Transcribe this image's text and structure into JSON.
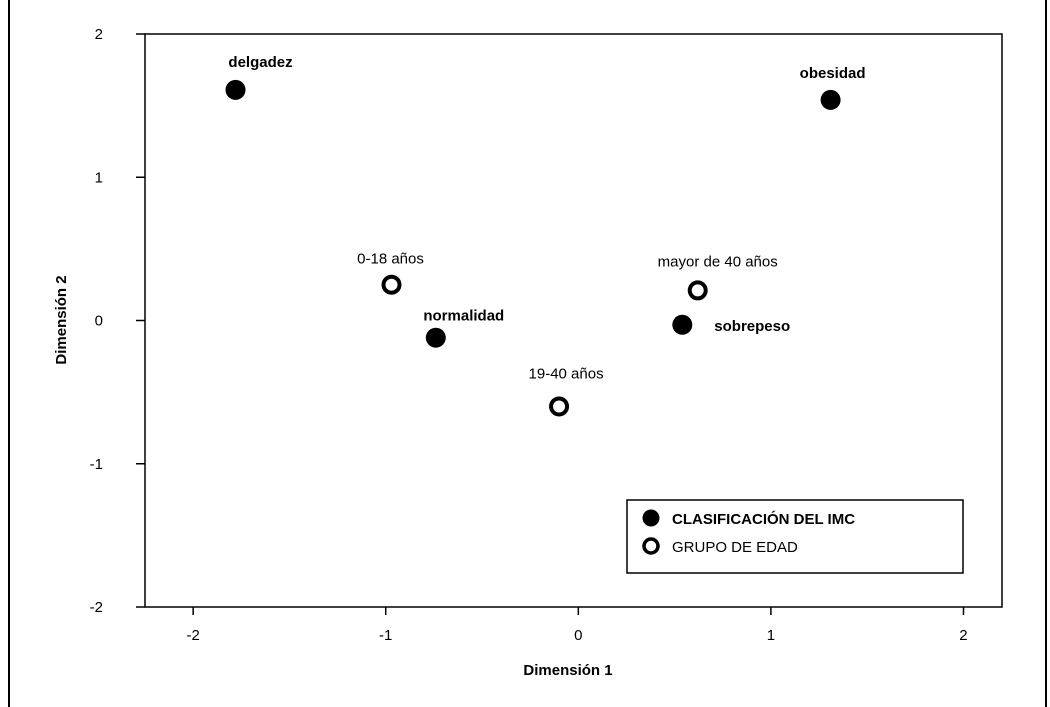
{
  "chart_data": {
    "type": "scatter",
    "title": "",
    "xlabel": "Dimensión 1",
    "ylabel": "Dimensión 2",
    "xlim": [
      -2.25,
      2.2
    ],
    "ylim": [
      -2,
      2
    ],
    "xticks": [
      -2,
      -1,
      0,
      1,
      2
    ],
    "yticks": [
      -2,
      -1,
      0,
      1,
      2
    ],
    "xtick_labels": [
      "-2",
      "-1",
      "0",
      "1",
      "2"
    ],
    "ytick_labels": [
      "-2",
      "-1",
      "0",
      "1",
      "2"
    ],
    "grid": false,
    "legend_position": "bottom-right",
    "series": [
      {
        "name": "CLASIFICACIÓN DEL IMC",
        "marker": "filled-circle",
        "color": "#000000",
        "points": [
          {
            "label": "delgadez",
            "x": -1.78,
            "y": 1.61
          },
          {
            "label": "normalidad",
            "x": -0.74,
            "y": -0.12
          },
          {
            "label": "sobrepeso",
            "x": 0.54,
            "y": -0.03
          },
          {
            "label": "obesidad",
            "x": 1.31,
            "y": 1.54
          }
        ]
      },
      {
        "name": "GRUPO DE EDAD",
        "marker": "hollow-circle",
        "color": "#000000",
        "points": [
          {
            "label": "0-18 años",
            "x": -0.97,
            "y": 0.25
          },
          {
            "label": "19-40 años",
            "x": -0.1,
            "y": -0.6
          },
          {
            "label": "mayor de 40 años",
            "x": 0.62,
            "y": 0.21
          }
        ]
      }
    ]
  }
}
